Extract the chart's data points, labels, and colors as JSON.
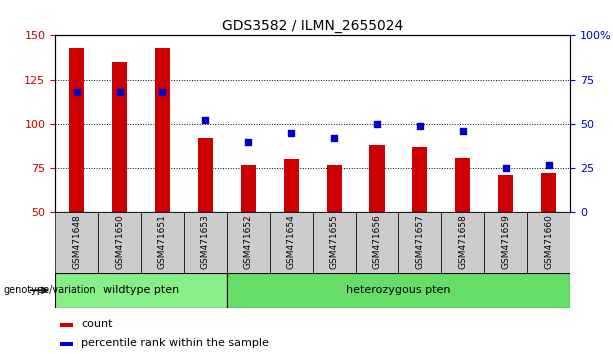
{
  "title": "GDS3582 / ILMN_2655024",
  "samples": [
    "GSM471648",
    "GSM471650",
    "GSM471651",
    "GSM471653",
    "GSM471652",
    "GSM471654",
    "GSM471655",
    "GSM471656",
    "GSM471657",
    "GSM471658",
    "GSM471659",
    "GSM471660"
  ],
  "bar_values": [
    143,
    135,
    143,
    92,
    77,
    80,
    77,
    88,
    87,
    81,
    71,
    72
  ],
  "percentile_values": [
    68,
    68,
    68,
    52,
    40,
    45,
    42,
    50,
    49,
    46,
    25,
    27
  ],
  "ylim_left": [
    50,
    150
  ],
  "ylim_right": [
    0,
    100
  ],
  "yticks_left": [
    50,
    75,
    100,
    125,
    150
  ],
  "yticks_right": [
    0,
    25,
    50,
    75,
    100
  ],
  "ytick_labels_right": [
    "0",
    "25",
    "50",
    "75",
    "100%"
  ],
  "bar_color": "#cc0000",
  "dot_color": "#0000cc",
  "cell_color": "#cccccc",
  "wildtype_color": "#88ee88",
  "heterozygous_color": "#66dd66",
  "wildtype_label": "wildtype pten",
  "heterozygous_label": "heterozygous pten",
  "genotype_label": "genotype/variation",
  "legend_count": "count",
  "legend_percentile": "percentile rank within the sample",
  "tick_label_color_left": "#cc0000",
  "tick_label_color_right": "#0000cc",
  "wildtype_count": 4,
  "heterozygous_count": 8,
  "bar_width": 0.35,
  "dot_size": 25
}
